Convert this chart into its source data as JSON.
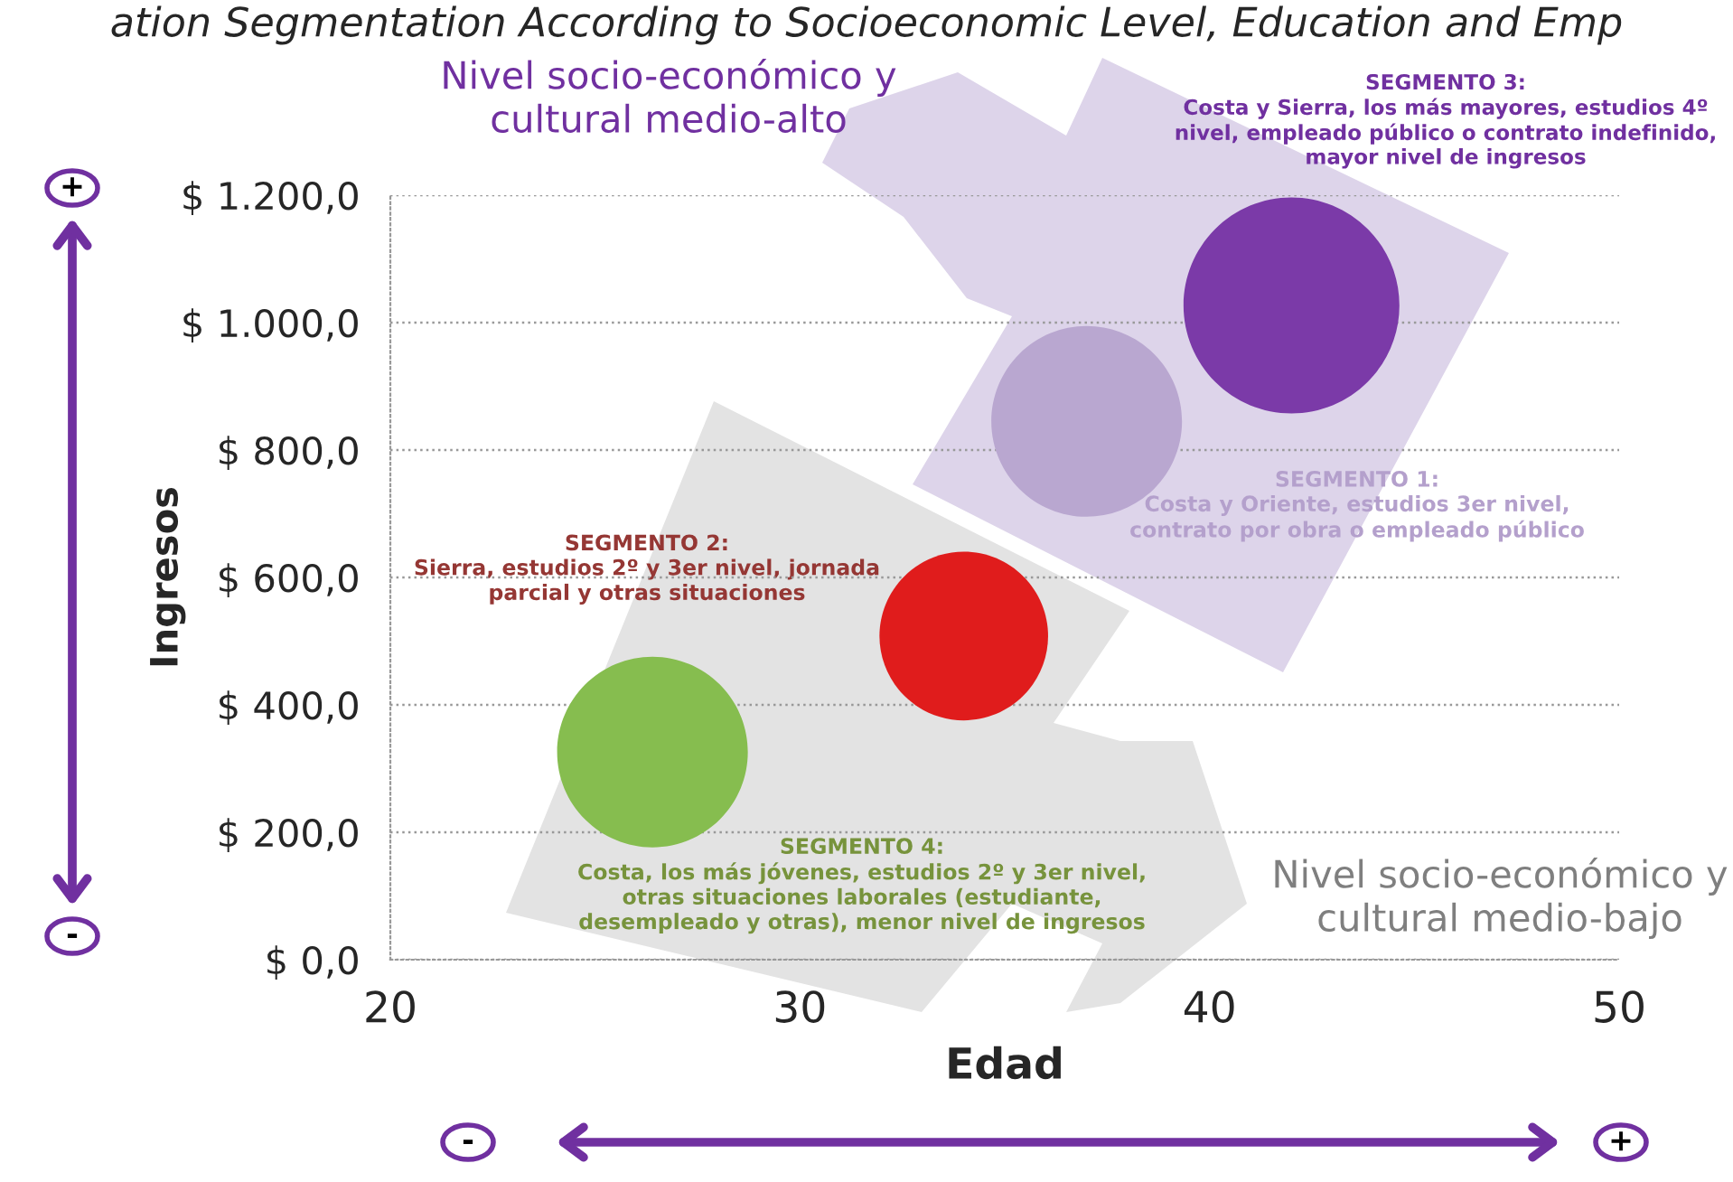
{
  "chart_data": {
    "type": "bubble",
    "title": "ation Segmentation According to Socioeconomic Level, Education and Emp",
    "xlabel": "Edad",
    "ylabel": "Ingresos",
    "x": [
      26.4,
      34.0,
      37.0,
      42.0
    ],
    "values": [
      326,
      508,
      845,
      1027
    ],
    "sizes": [
      0.78,
      0.61,
      0.78,
      1
    ],
    "colors": [
      "#86bd4f",
      "#e01c1c",
      "#b9a7d0",
      "#7b3aa8"
    ],
    "xlim": [
      20,
      50
    ],
    "xticks": [
      20,
      30,
      40,
      50
    ],
    "ylim": [
      0,
      1200
    ],
    "yticks": [
      {
        "value": 0,
        "label": "$ 0,0"
      },
      {
        "value": 200,
        "label": "$ 200,0"
      },
      {
        "value": 400,
        "label": "$ 400,0"
      },
      {
        "value": 600,
        "label": "$ 600,0"
      },
      {
        "value": 800,
        "label": "$ 800,0"
      },
      {
        "value": 1000,
        "label": "$ 1.000,0"
      },
      {
        "value": 1200,
        "label": "$ 1.200,0"
      }
    ],
    "grid": "y",
    "annotations": [
      "Nivel socio-económico y\ncultural medio-alto",
      "SEGMENTO 3:\nCosta y Sierra, los más mayores, estudios 4º\nnivel, empleado público o contrato indefinido,\nmayor nivel de ingresos",
      "SEGMENTO 1:\nCosta y Oriente, estudios 3er nivel,\ncontrato por obra o empleado público",
      "SEGMENTO 2:\nSierra, estudios 2º y 3er nivel, jornada\nparcial y otras situaciones",
      "SEGMENTO 4:\nCosta, los más jóvenes, estudios 2º y 3er nivel,\notras situaciones laborales (estudiante,\ndesempleado y otras), menor nivel de ingresos",
      "Nivel socio-económico y\ncultural medio-bajo",
      "+",
      "-",
      "-",
      "+"
    ]
  }
}
